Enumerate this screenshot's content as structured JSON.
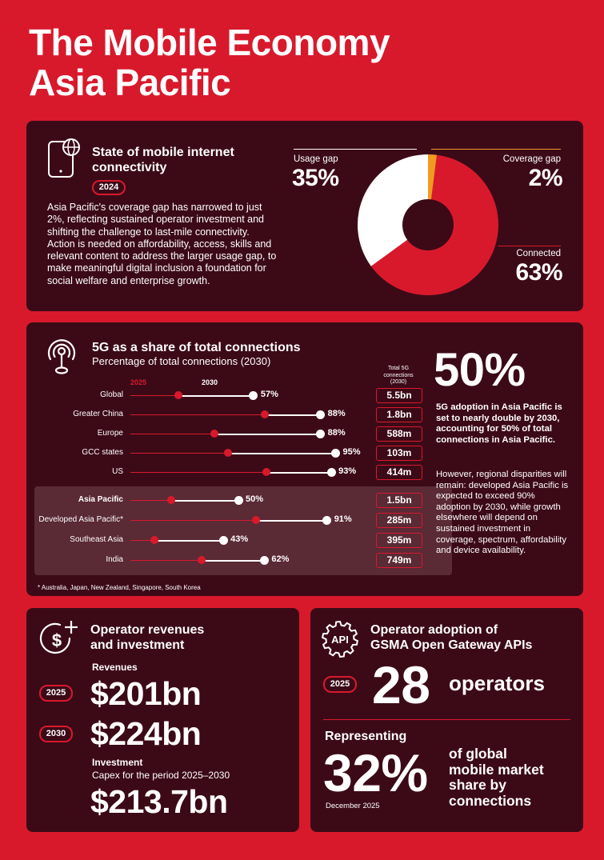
{
  "title": {
    "line1": "The Mobile Economy",
    "line2": "Asia Pacific"
  },
  "connectivity": {
    "heading_line1": "State of mobile internet",
    "heading_line2": "connectivity",
    "year": "2024",
    "body": "Asia Pacific's coverage gap has narrowed to just 2%, reflecting sustained operator investment and shifting the challenge to last-mile connectivity. Action is needed on affordability, access, skills and relevant content to address the larger usage gap, to make meaningful digital inclusion a foundation for social welfare and enterprise growth.",
    "usage_gap_label": "Usage gap",
    "usage_gap_value": "35%",
    "coverage_gap_label": "Coverage gap",
    "coverage_gap_value": "2%",
    "connected_label": "Connected",
    "connected_value": "63%",
    "colors": {
      "usage": "#ffffff",
      "coverage": "#f29a1f",
      "connected": "#d8192c"
    }
  },
  "fiveg": {
    "heading": "5G as a share of total connections",
    "subheading": "Percentage of total connections (2030)",
    "legend_2025": "2025",
    "legend_2030": "2030",
    "total_header": "Total 5G connections (2030)",
    "big_value": "50%",
    "summary": "5G adoption in Asia Pacific is set to nearly double by 2030, accounting for 50% of total connections in Asia Pacific.",
    "detail": "However, regional disparities will remain: developed Asia Pacific is expected to exceed 90% adoption by 2030, while growth elsewhere will depend on sustained investment in coverage, spectrum, affordability and device availability.",
    "footnote": "* Australia, Japan, New Zealand, Singapore, South Korea",
    "rows": [
      {
        "label": "Global",
        "v2025": 25,
        "v2030": 57,
        "value_label": "57%",
        "total": "5.5bn"
      },
      {
        "label": "Greater China",
        "v2025": 65,
        "v2030": 88,
        "value_label": "88%",
        "total": "1.8bn"
      },
      {
        "label": "Europe",
        "v2025": 42,
        "v2030": 88,
        "value_label": "88%",
        "total": "588m"
      },
      {
        "label": "GCC states",
        "v2025": 48,
        "v2030": 95,
        "value_label": "95%",
        "total": "103m"
      },
      {
        "label": "US",
        "v2025": 66,
        "v2030": 93,
        "value_label": "93%",
        "total": "414m"
      },
      {
        "label": "Asia Pacific",
        "v2025": 22,
        "v2030": 50,
        "value_label": "50%",
        "total": "1.5bn",
        "highlight": true
      },
      {
        "label": "Developed Asia Pacific*",
        "v2025": 61,
        "v2030": 91,
        "value_label": "91%",
        "total": "285m",
        "highlight": true
      },
      {
        "label": "Southeast Asia",
        "v2025": 14,
        "v2030": 43,
        "value_label": "43%",
        "total": "395m",
        "highlight": true
      },
      {
        "label": "India",
        "v2025": 36,
        "v2030": 62,
        "value_label": "62%",
        "total": "749m",
        "highlight": true
      }
    ]
  },
  "revenues": {
    "heading_line1": "Operator revenues",
    "heading_line2": "and investment",
    "revenues_label": "Revenues",
    "year1": "2025",
    "value1": "$201bn",
    "year2": "2030",
    "value2": "$224bn",
    "investment_label": "Investment",
    "investment_sub": "Capex for the period 2025–2030",
    "investment_value": "$213.7bn"
  },
  "apis": {
    "heading_line1": "Operator adoption of",
    "heading_line2": "GSMA Open Gateway APIs",
    "icon_text": "API",
    "year": "2025",
    "operators_value": "28",
    "operators_label": "operators",
    "representing": "Representing",
    "share_value": "32%",
    "share_line1": "of global",
    "share_line2": "mobile market",
    "share_line3": "share by",
    "share_line4": "connections",
    "date": "December 2025"
  }
}
